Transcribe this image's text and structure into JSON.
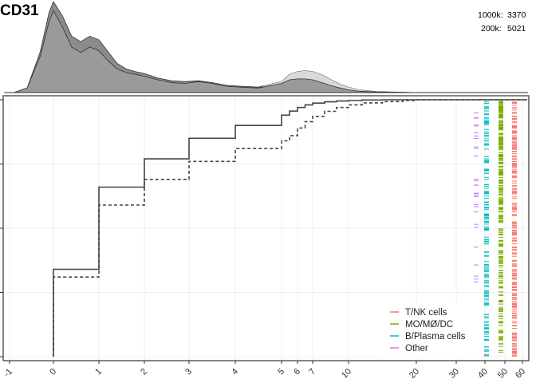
{
  "chart_data": {
    "type": "line",
    "title": "CD31",
    "counts": [
      {
        "label": "1000k:",
        "value": "3370"
      },
      {
        "label": "200k:",
        "value": "5021"
      }
    ],
    "x_tick_labels": [
      "-1",
      "0",
      "1",
      "2",
      "3",
      "4",
      "5",
      "6",
      "7",
      "10",
      "20",
      "30",
      "40",
      "50",
      "60"
    ],
    "x_tick_values": [
      -1,
      0,
      1,
      2,
      3,
      4,
      5,
      6,
      7,
      10,
      20,
      30,
      40,
      50,
      60
    ],
    "density": {
      "series": [
        {
          "x": [
            -0.9,
            -0.6,
            -0.3,
            -0.1,
            0,
            0.2,
            0.4,
            0.6,
            0.8,
            1.0,
            1.2,
            1.4,
            1.6,
            1.8,
            2.0,
            2.3,
            2.6,
            2.9,
            3.2,
            3.5,
            3.8,
            4.1,
            4.5,
            5.0,
            5.5,
            6.0,
            6.5,
            7.0,
            7.5,
            8.0,
            8.7,
            9.3,
            10.0,
            11.5,
            14,
            17,
            20,
            22
          ],
          "y": [
            0.0,
            0.05,
            0.4,
            0.78,
            0.9,
            0.72,
            0.5,
            0.44,
            0.5,
            0.46,
            0.35,
            0.26,
            0.22,
            0.2,
            0.18,
            0.14,
            0.11,
            0.1,
            0.12,
            0.1,
            0.07,
            0.06,
            0.05,
            0.1,
            0.14,
            0.15,
            0.15,
            0.14,
            0.12,
            0.1,
            0.07,
            0.05,
            0.03,
            0.015,
            0.007,
            0.003,
            0.0,
            0.0
          ]
        },
        {
          "x": [
            -0.9,
            -0.6,
            -0.3,
            -0.1,
            0,
            0.2,
            0.4,
            0.6,
            0.8,
            1.0,
            1.2,
            1.4,
            1.6,
            1.8,
            2.0,
            2.3,
            2.6,
            2.9,
            3.2,
            3.5,
            3.8,
            4.1,
            4.5,
            5.0,
            5.5,
            6.0,
            6.5,
            7.0,
            7.5,
            8.0,
            8.7,
            9.3,
            10.0,
            11.5,
            14,
            17,
            20,
            22
          ],
          "y": [
            0.0,
            0.05,
            0.45,
            0.88,
            1.0,
            0.84,
            0.62,
            0.56,
            0.62,
            0.58,
            0.45,
            0.32,
            0.26,
            0.23,
            0.21,
            0.16,
            0.13,
            0.12,
            0.13,
            0.11,
            0.08,
            0.07,
            0.06,
            0.12,
            0.2,
            0.23,
            0.24,
            0.23,
            0.21,
            0.18,
            0.13,
            0.09,
            0.06,
            0.03,
            0.012,
            0.005,
            0.0,
            0.0
          ]
        }
      ]
    },
    "ecdf": {
      "series": [
        {
          "linetype": "solid",
          "x": [
            0,
            1,
            2,
            3,
            4,
            5,
            5.5,
            6,
            6.5,
            7,
            8,
            9,
            10,
            12,
            15,
            20
          ],
          "y": [
            0.34,
            0.66,
            0.77,
            0.85,
            0.9,
            0.94,
            0.956,
            0.97,
            0.98,
            0.987,
            0.992,
            0.995,
            0.997,
            0.999,
            1.0,
            1.0
          ]
        },
        {
          "linetype": "dashed",
          "x": [
            0,
            1,
            2,
            3,
            4,
            5,
            5.5,
            6,
            6.5,
            7,
            8,
            9,
            10,
            12,
            15,
            18,
            20
          ],
          "y": [
            0.31,
            0.59,
            0.69,
            0.76,
            0.81,
            0.84,
            0.86,
            0.89,
            0.915,
            0.935,
            0.955,
            0.97,
            0.98,
            0.988,
            0.993,
            0.997,
            1.0
          ]
        }
      ],
      "ylim": [
        0,
        1
      ]
    },
    "legend": {
      "position": "bottom-right",
      "items": [
        {
          "label": "T/NK cells",
          "color": "#f8766d"
        },
        {
          "label": "MO/MØ/DC",
          "color": "#7cae00"
        },
        {
          "label": "B/Plasma cells",
          "color": "#00bfc4"
        },
        {
          "label": "Other",
          "color": "#c77cff"
        }
      ]
    },
    "rug_colors": [
      "#c77cff",
      "#00bfc4",
      "#7cae00",
      "#f8766d"
    ],
    "grid": true
  }
}
